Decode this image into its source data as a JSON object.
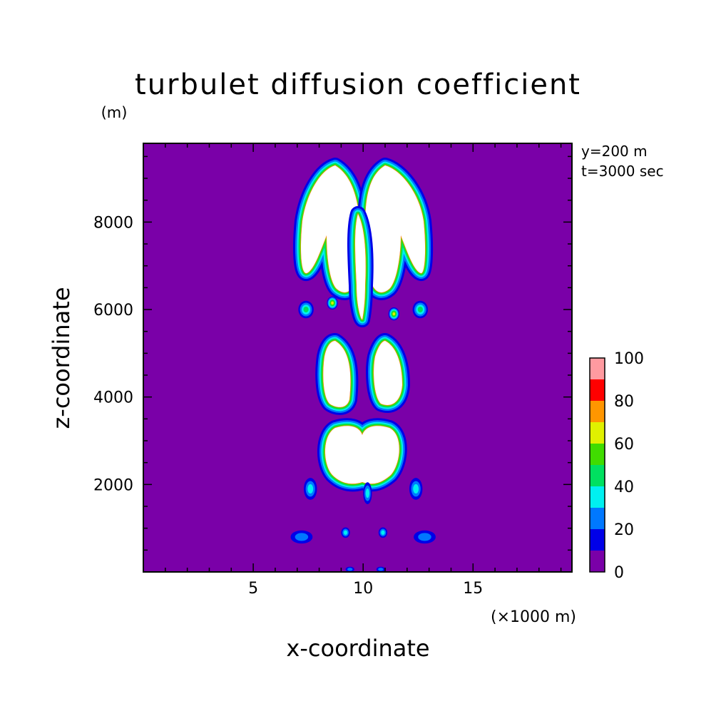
{
  "chart_data": {
    "type": "heatmap",
    "title": "turbulet diffusion coefficient",
    "xlabel": "x-coordinate",
    "ylabel": "z-coordinate",
    "x_unit": "(×1000 m)",
    "y_unit": "(m)",
    "xlim": [
      0,
      19.5
    ],
    "ylim": [
      0,
      9800
    ],
    "xticks": [
      5,
      10,
      15
    ],
    "xtick_labels": [
      "5",
      "10",
      "15"
    ],
    "yticks": [
      2000,
      4000,
      6000,
      8000
    ],
    "ytick_labels": [
      "2000",
      "4000",
      "6000",
      "8000"
    ],
    "annotations": [
      "y=200 m",
      "t=3000 sec"
    ],
    "colorbar": {
      "levels": [
        0,
        10,
        20,
        30,
        40,
        50,
        60,
        70,
        80,
        90,
        100
      ],
      "tick_values": [
        0,
        20,
        40,
        60,
        80,
        100
      ],
      "tick_labels": [
        "0",
        "20",
        "40",
        "60",
        "80",
        "100"
      ],
      "colors": [
        "#7a00a8",
        "#0000e8",
        "#0078ff",
        "#00f0f0",
        "#00e060",
        "#40dc00",
        "#e0f000",
        "#ff9600",
        "#ff0000",
        "#ff9aa0"
      ],
      "over_color": "#ffffff"
    },
    "background_value": 0,
    "features": [
      {
        "name": "upper-left-lobe",
        "x": 8.5,
        "z": 7800,
        "rx": 1.3,
        "rz": 1700
      },
      {
        "name": "upper-right-lobe",
        "x": 11.3,
        "z": 7800,
        "rx": 1.3,
        "rz": 1700
      },
      {
        "name": "middle-left-lobe",
        "x": 8.9,
        "z": 4400,
        "rx": 0.7,
        "rz": 900
      },
      {
        "name": "middle-right-lobe",
        "x": 11.1,
        "z": 4400,
        "rx": 0.7,
        "rz": 900
      },
      {
        "name": "lower-core",
        "x": 10.0,
        "z": 2800,
        "rx": 1.6,
        "rz": 700
      }
    ]
  }
}
